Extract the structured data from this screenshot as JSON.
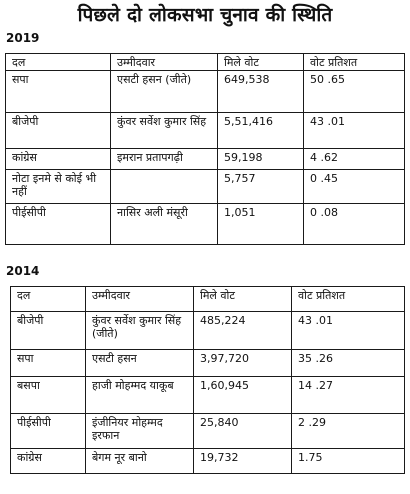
{
  "title": "पिछले दो लोकसभा चुनाव की स्थिति",
  "sections": [
    {
      "year": "2019",
      "headers": [
        "दल",
        "उम्मीदवार",
        "मिले वोट",
        "वोट प्रतिशत"
      ],
      "rows": [
        [
          "सपा",
          "एसटी हसन (जीते)",
          "649,538",
          "50 .65"
        ],
        [
          "बीजेपी",
          "कुंवर सर्वेश कुमार सिंह",
          "5,51,416",
          "43 .01"
        ],
        [
          "कांग्रेस",
          "इमरान प्रतापगढ़ी",
          "59,198",
          "4 .62"
        ],
        [
          "नोटा इनमे से कोई भी नहीं",
          "",
          "5,757",
          "0 .45"
        ],
        [
          "पीईसीपी",
          "नासिर अली मंसूरी",
          "1,051",
          "0 .08"
        ]
      ]
    },
    {
      "year": "2014",
      "headers": [
        "दल",
        "उम्मीदवार",
        "मिले वोट",
        "वोट प्रतिशत"
      ],
      "rows": [
        [
          "बीजेपी",
          "कुंवर सर्वेश कुमार सिंह (जीते)",
          "485,224",
          "43 .01"
        ],
        [
          "सपा",
          "एसटी हसन",
          "3,97,720",
          "35 .26"
        ],
        [
          "बसपा",
          "हाजी मोहम्मद याकूब",
          "1,60,945",
          "14 .27"
        ],
        [
          "पीईसीपी",
          "इंजीनियर मोहम्मद इरफान",
          "25,840",
          "2 .29"
        ],
        [
          "कांग्रेस",
          "बेगम नूर बानो",
          "19,732",
          "1.75"
        ]
      ]
    }
  ]
}
